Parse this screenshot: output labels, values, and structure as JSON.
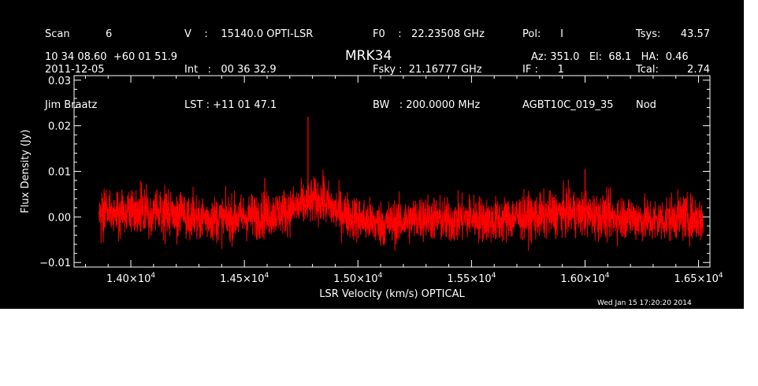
{
  "header": {
    "col1": [
      "Scan           6",
      "2011-12-05",
      "Jim Braatz"
    ],
    "col2": [
      "V    :    15140.0 OPTI-LSR",
      "Int   :   00 36 32.9",
      "LST : +11 01 47.1"
    ],
    "col3": [
      "F0    :   22.23508 GHz",
      "Fsky :  21.16777 GHz",
      "BW   : 200.0000 MHz"
    ],
    "col4": [
      "Pol:      I",
      "IF :      1",
      "AGBT10C_019_35"
    ],
    "col5": [
      "Tsys:",
      "Tcal:",
      "Nod"
    ],
    "col6": [
      "43.57",
      "2.74"
    ],
    "coords": "10 34 08.60  +60 01 51.9",
    "source": "MRK34",
    "azelha": "Az: 351.0   El:  68.1   HA:  0.46",
    "timestamp": "Wed Jan 15 17:20:20 2014"
  },
  "chart_data": {
    "type": "line",
    "title": "MRK34",
    "xlabel": "LSR Velocity (km/s) OPTICAL",
    "ylabel": "Flux Density (Jy)",
    "xlim": [
      13750,
      16550
    ],
    "ylim": [
      -0.011,
      0.031
    ],
    "x_tick_values": [
      14000,
      14500,
      15000,
      15500,
      16000,
      16500
    ],
    "x_tick_labels": [
      {
        "mantissa": "1.40×10",
        "exp": "4"
      },
      {
        "mantissa": "1.45×10",
        "exp": "4"
      },
      {
        "mantissa": "1.50×10",
        "exp": "4"
      },
      {
        "mantissa": "1.55×10",
        "exp": "4"
      },
      {
        "mantissa": "1.60×10",
        "exp": "4"
      },
      {
        "mantissa": "1.65×10",
        "exp": "4"
      }
    ],
    "y_tick_values": [
      -0.01,
      0.0,
      0.01,
      0.02,
      0.03
    ],
    "y_tick_labels": [
      "−0.01",
      "0.00",
      "0.01",
      "0.02",
      "0.03"
    ],
    "series": [
      {
        "color": "#ff0000",
        "x_range": [
          13860,
          16520
        ],
        "baseline": [
          [
            13860,
            0.0005
          ],
          [
            14000,
            0.0015
          ],
          [
            14200,
            0.0005
          ],
          [
            14400,
            -0.0005
          ],
          [
            14600,
            0.0005
          ],
          [
            14700,
            0.0015
          ],
          [
            14780,
            0.003
          ],
          [
            14830,
            0.004
          ],
          [
            14900,
            0.0015
          ],
          [
            15000,
            -0.0005
          ],
          [
            15100,
            -0.0015
          ],
          [
            15200,
            -0.001
          ],
          [
            15300,
            0.0
          ],
          [
            15400,
            -0.001
          ],
          [
            15500,
            0.0
          ],
          [
            15600,
            -0.001
          ],
          [
            15700,
            0.0
          ],
          [
            15800,
            0.0
          ],
          [
            15900,
            0.001
          ],
          [
            16000,
            0.0005
          ],
          [
            16100,
            0.0
          ],
          [
            16200,
            0.0
          ],
          [
            16300,
            -0.001
          ],
          [
            16400,
            0.0
          ],
          [
            16520,
            -0.0005
          ]
        ],
        "noise_rms": 0.0025,
        "peaks": [
          [
            14780,
            0.022
          ],
          [
            14590,
            0.0085
          ],
          [
            16000,
            0.0105
          ],
          [
            14850,
            0.009
          ]
        ]
      }
    ]
  }
}
